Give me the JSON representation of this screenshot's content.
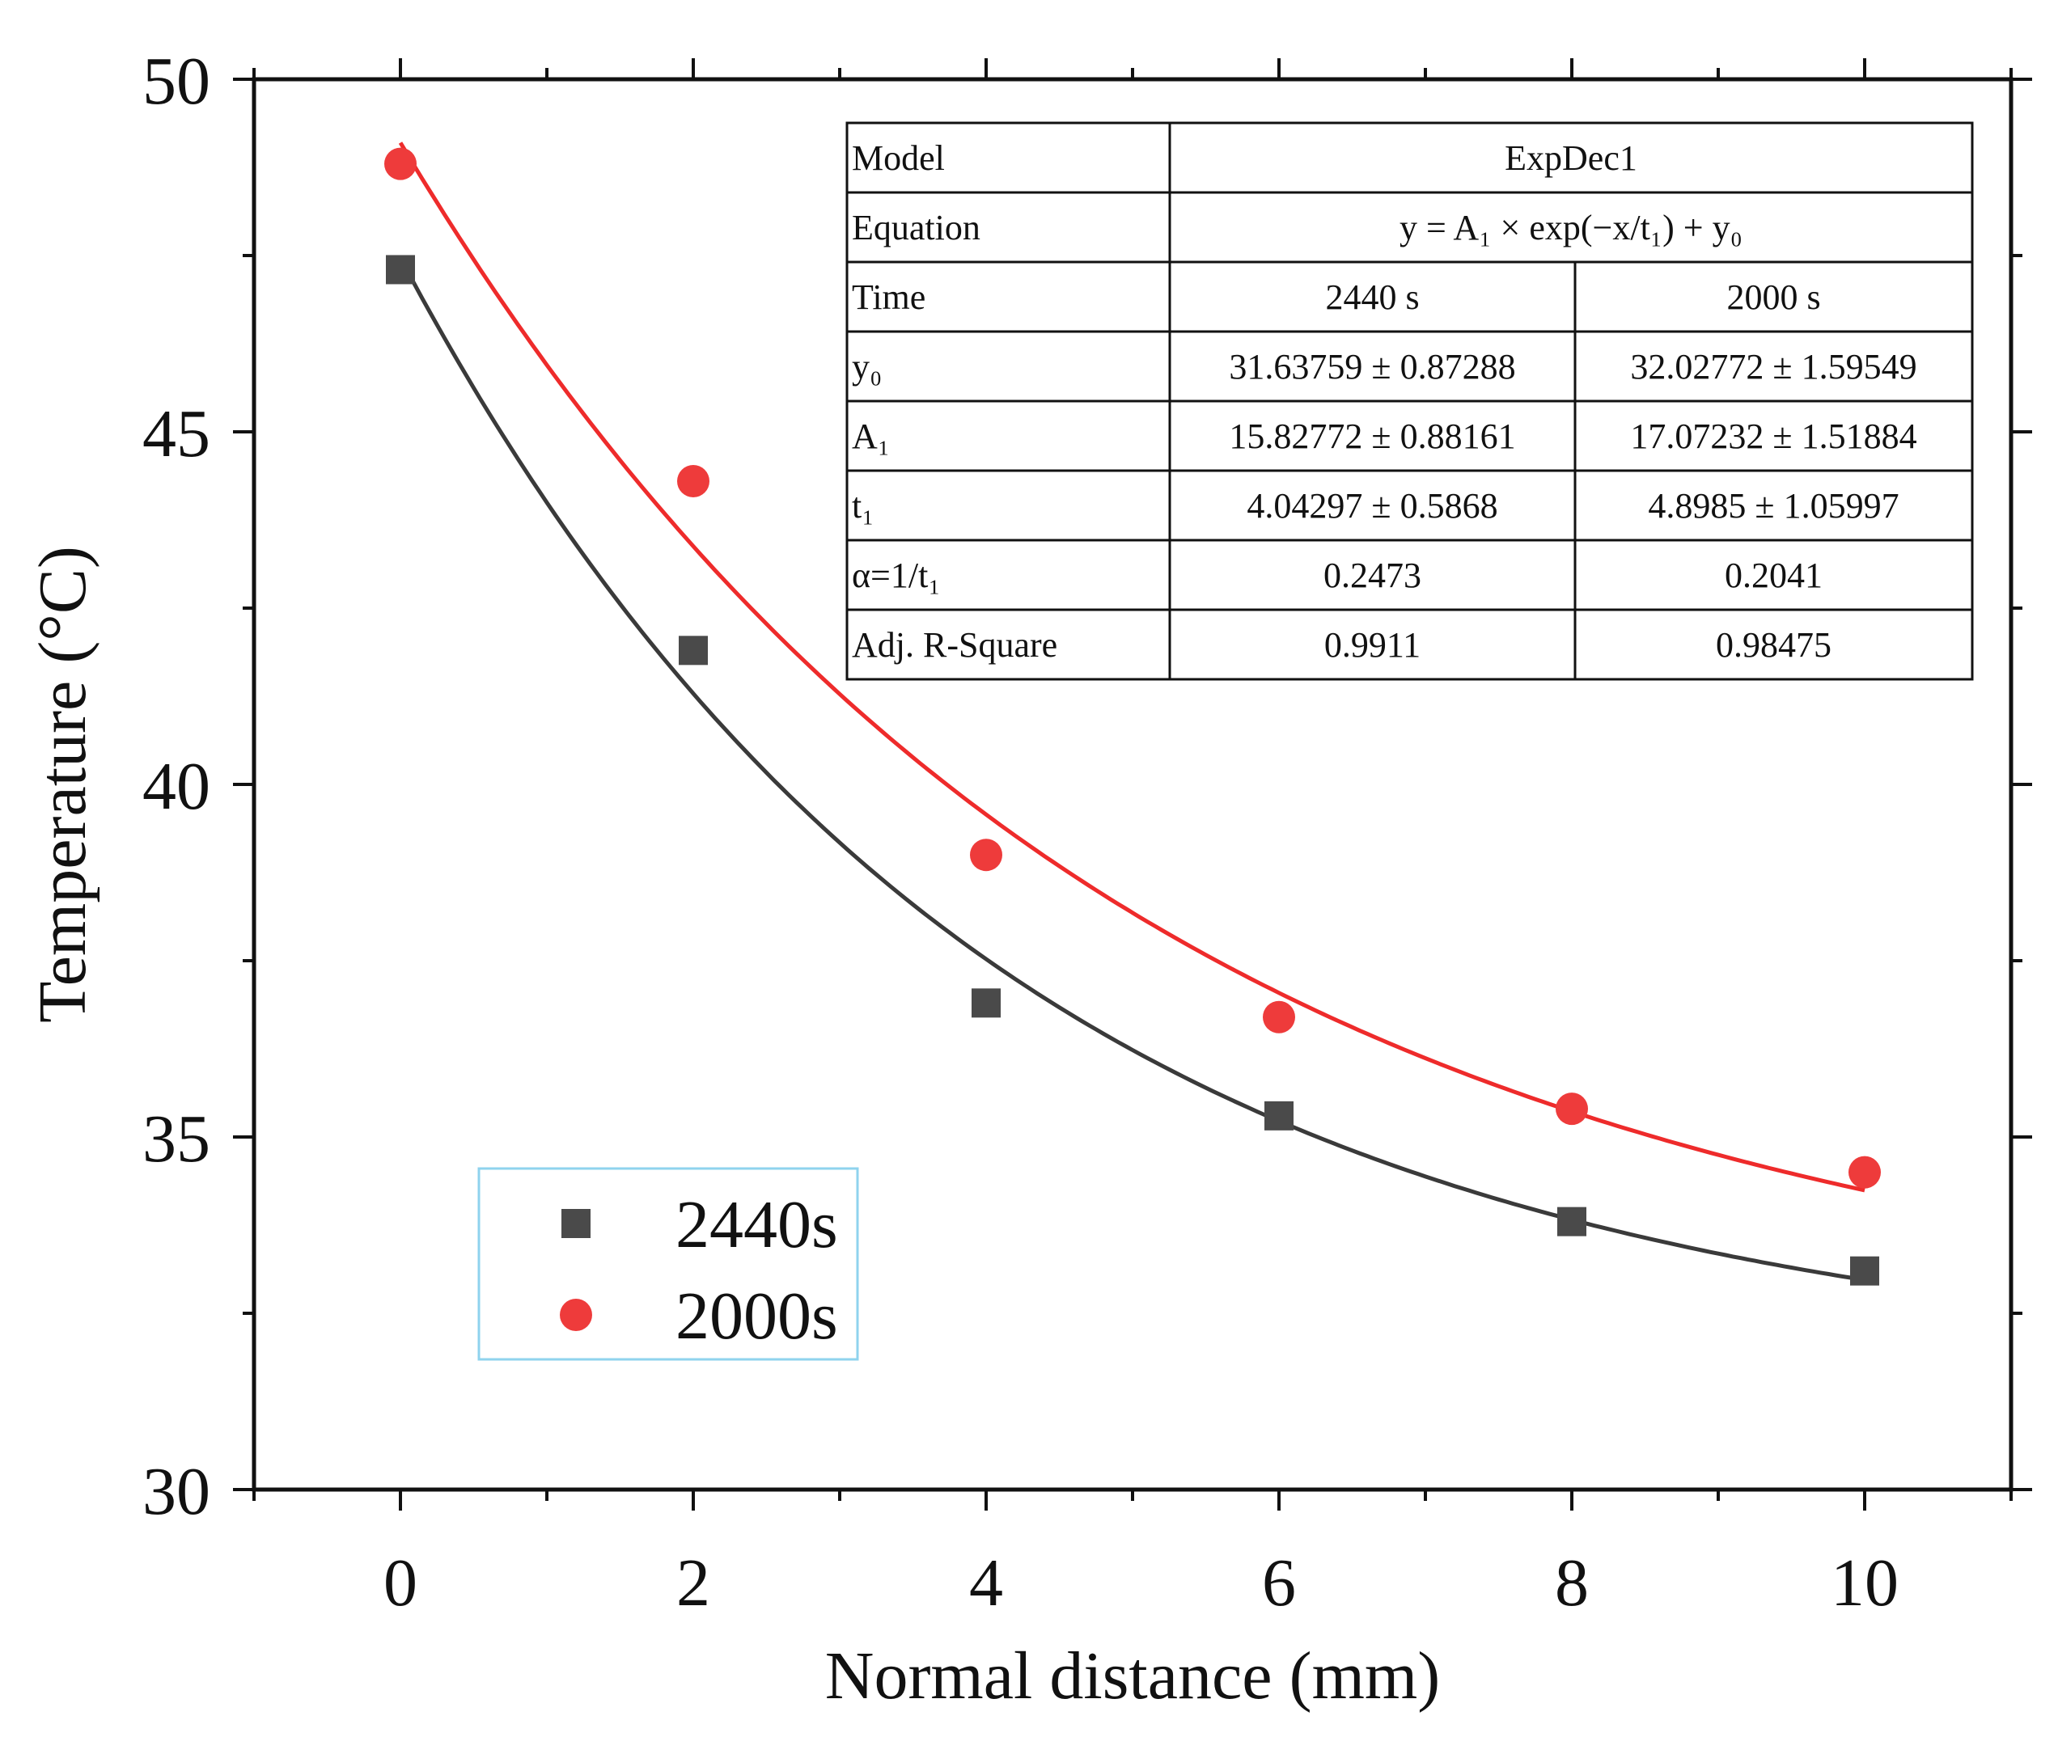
{
  "chart_data": {
    "type": "scatter",
    "title": "",
    "xlabel": "Normal distance (mm)",
    "ylabel": "Temperature (°C)",
    "xlim": [
      -1,
      11
    ],
    "ylim": [
      30,
      50
    ],
    "xticks": [
      0,
      2,
      4,
      6,
      8,
      10
    ],
    "xtick_labels": [
      "0",
      "2",
      "4",
      "6",
      "8",
      "10"
    ],
    "yticks": [
      30,
      35,
      40,
      45,
      50
    ],
    "ytick_labels": [
      "30",
      "35",
      "40",
      "45",
      "50"
    ],
    "legend_position": "bottom-left",
    "series": [
      {
        "name": "2440s",
        "marker": "square",
        "color": "#4a4a4a",
        "line_color": "#3a3a3a",
        "x": [
          0,
          2,
          4,
          6,
          8,
          10
        ],
        "y": [
          47.3,
          41.9,
          36.9,
          35.3,
          33.8,
          33.1
        ],
        "fit": {
          "model": "ExpDec1",
          "y0": 31.63759,
          "A1": 15.82772,
          "t1": 4.04297
        }
      },
      {
        "name": "2000s",
        "marker": "circle",
        "color": "#ee3b3b",
        "line_color": "#ee2b2b",
        "x": [
          0,
          2,
          4,
          6,
          8,
          10
        ],
        "y": [
          48.8,
          44.3,
          39.0,
          36.7,
          35.4,
          34.5
        ],
        "fit": {
          "model": "ExpDec1",
          "y0": 32.02772,
          "A1": 17.07232,
          "t1": 4.8985
        }
      }
    ],
    "annotation_table": {
      "rows": [
        {
          "label": "Model",
          "span": "ExpDec1"
        },
        {
          "label": "Equation",
          "span": "y = A₁ × exp(−x/t₁) + y₀"
        },
        {
          "label": "Time",
          "values": [
            "2440 s",
            "2000 s"
          ]
        },
        {
          "label": "y₀",
          "values": [
            "31.63759 ± 0.87288",
            "32.02772 ± 1.59549"
          ]
        },
        {
          "label": "A₁",
          "values": [
            "15.82772 ± 0.88161",
            "17.07232 ± 1.51884"
          ]
        },
        {
          "label": "t₁",
          "values": [
            "4.04297 ± 0.5868",
            "4.8985 ± 1.05997"
          ]
        },
        {
          "label": "α=1/t₁",
          "values": [
            "0.2473",
            "0.2041"
          ]
        },
        {
          "label": "Adj. R-Square",
          "values": [
            "0.9911",
            "0.98475"
          ]
        }
      ]
    }
  }
}
